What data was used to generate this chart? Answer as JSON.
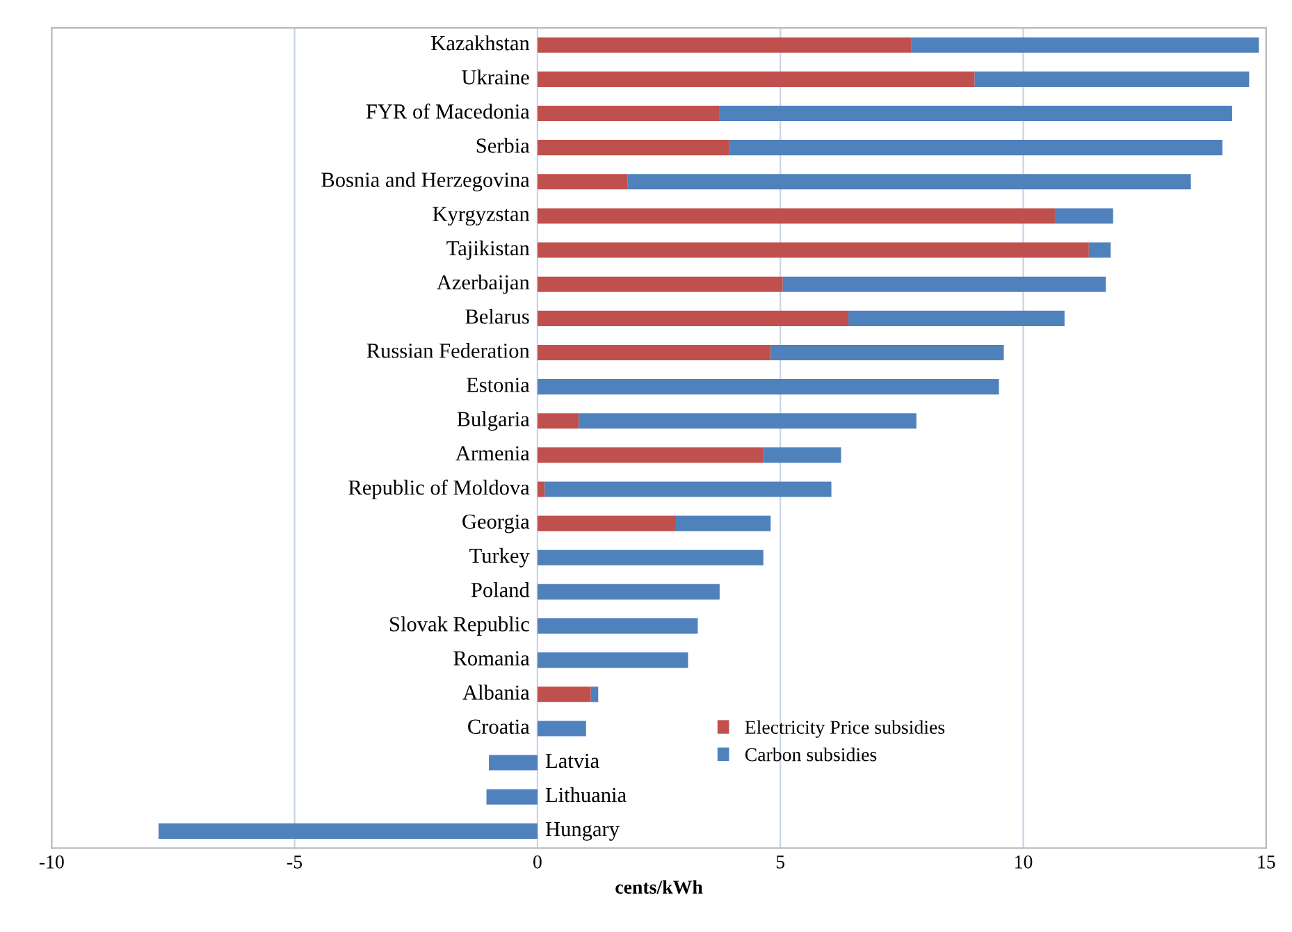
{
  "chart_data": {
    "type": "bar",
    "orientation": "horizontal",
    "stacked": true,
    "xlabel": "cents/kWh",
    "categories": [
      "Kazakhstan",
      "Ukraine",
      "FYR of Macedonia",
      "Serbia",
      "Bosnia and Herzegovina",
      "Kyrgyzstan",
      "Tajikistan",
      "Azerbaijan",
      "Belarus",
      "Russian Federation",
      "Estonia",
      "Bulgaria",
      "Armenia",
      "Republic of Moldova",
      "Georgia",
      "Turkey",
      "Poland",
      "Slovak Republic",
      "Romania",
      "Albania",
      "Croatia",
      "Latvia",
      "Lithuania",
      "Hungary"
    ],
    "series": [
      {
        "name": "Electricity Price subsidies",
        "color": "#c0504d",
        "values": [
          7.7,
          9.0,
          3.75,
          3.95,
          1.85,
          10.65,
          11.35,
          5.05,
          6.4,
          4.8,
          0,
          0.85,
          4.65,
          0.15,
          2.85,
          0,
          0,
          0,
          0,
          1.1,
          0,
          0,
          0,
          0
        ]
      },
      {
        "name": "Carbon subsidies",
        "color": "#4f81bd",
        "values": [
          7.15,
          5.65,
          10.55,
          10.15,
          11.6,
          1.2,
          0.45,
          6.65,
          4.45,
          4.8,
          9.5,
          6.95,
          1.6,
          5.9,
          1.95,
          4.65,
          3.75,
          3.3,
          3.1,
          0.15,
          1.0,
          -1.0,
          -1.05,
          -7.8
        ]
      }
    ],
    "xlim": [
      -10,
      15
    ],
    "xticks": [
      -10,
      -5,
      0,
      5,
      10,
      15
    ],
    "grid": "x",
    "legend": "bottom right"
  }
}
